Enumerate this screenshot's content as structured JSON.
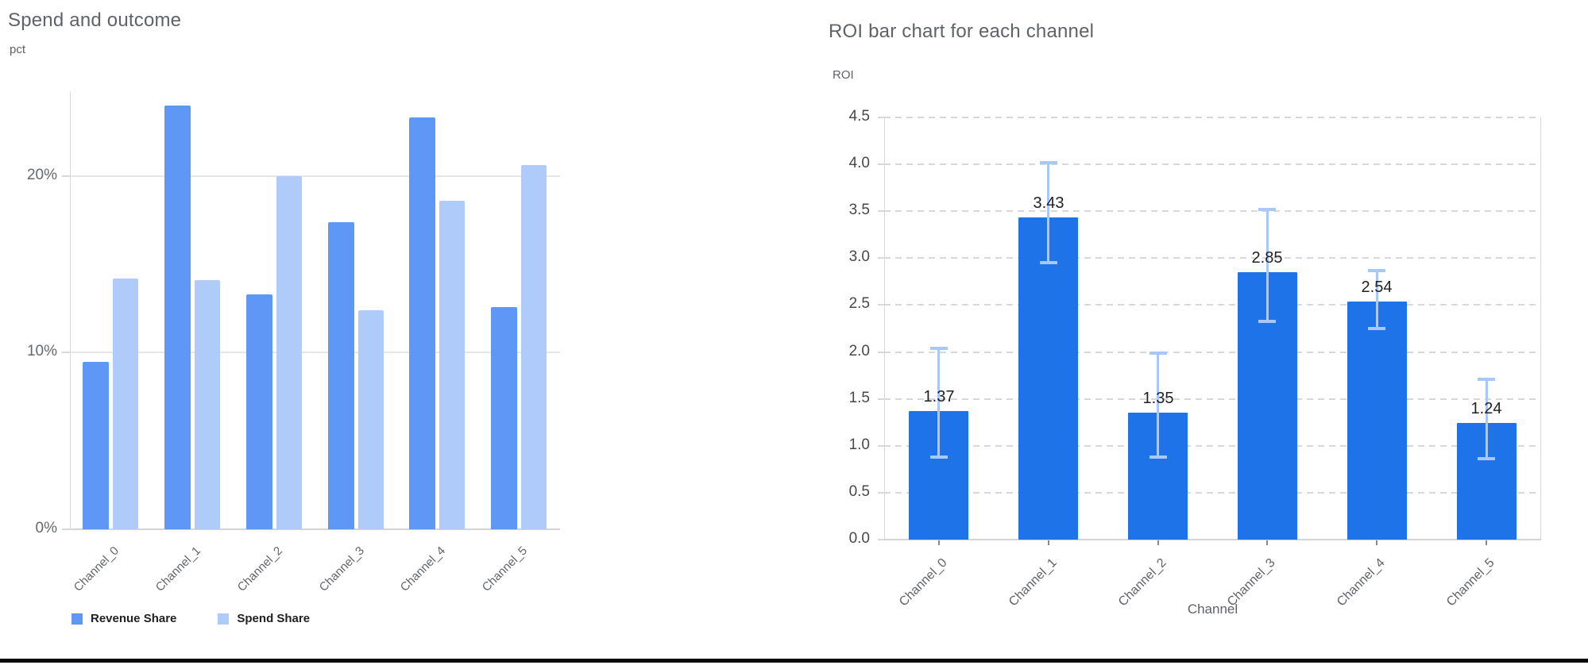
{
  "page": {
    "background_color": "#ffffff",
    "footer_line_color": "#0b0b0b"
  },
  "chart_data": [
    {
      "type": "bar",
      "title": "Spend and outcome",
      "ylabel": "pct",
      "xlabel": "",
      "categories": [
        "Channel_0",
        "Channel_1",
        "Channel_2",
        "Channel_3",
        "Channel_4",
        "Channel_5"
      ],
      "series": [
        {
          "name": "Revenue Share",
          "color": "#5e97f6",
          "values": [
            9.5,
            24.0,
            13.3,
            17.4,
            23.3,
            12.6
          ]
        },
        {
          "name": "Spend Share",
          "color": "#aecbfa",
          "values": [
            14.2,
            14.1,
            20.0,
            12.4,
            18.6,
            20.6
          ]
        }
      ],
      "y_ticks": [
        "0%",
        "10%",
        "20%"
      ],
      "ylim": [
        0,
        24.8
      ],
      "grid": "solid-horizontal",
      "legend_position": "bottom"
    },
    {
      "type": "bar",
      "title": "ROI bar chart for each channel",
      "ylabel": "ROI",
      "xlabel": "Channel",
      "categories": [
        "Channel_0",
        "Channel_1",
        "Channel_2",
        "Channel_3",
        "Channel_4",
        "Channel_5"
      ],
      "values": [
        1.37,
        3.43,
        1.35,
        2.85,
        2.54,
        1.24
      ],
      "bar_labels": [
        "1.37",
        "3.43",
        "1.35",
        "2.85",
        "2.54",
        "1.24"
      ],
      "error_high": [
        2.04,
        4.02,
        1.99,
        3.52,
        2.87,
        1.71
      ],
      "error_low": [
        0.88,
        2.95,
        0.88,
        2.33,
        2.25,
        0.86
      ],
      "y_ticks": [
        "0.0",
        "0.5",
        "1.0",
        "1.5",
        "2.0",
        "2.5",
        "3.0",
        "3.5",
        "4.0",
        "4.5"
      ],
      "ylim": [
        0,
        4.5
      ],
      "bar_color": "#1e73e8",
      "error_bar_color": "#a8c7fa",
      "grid": "dashed-horizontal",
      "legend_position": "none"
    }
  ]
}
